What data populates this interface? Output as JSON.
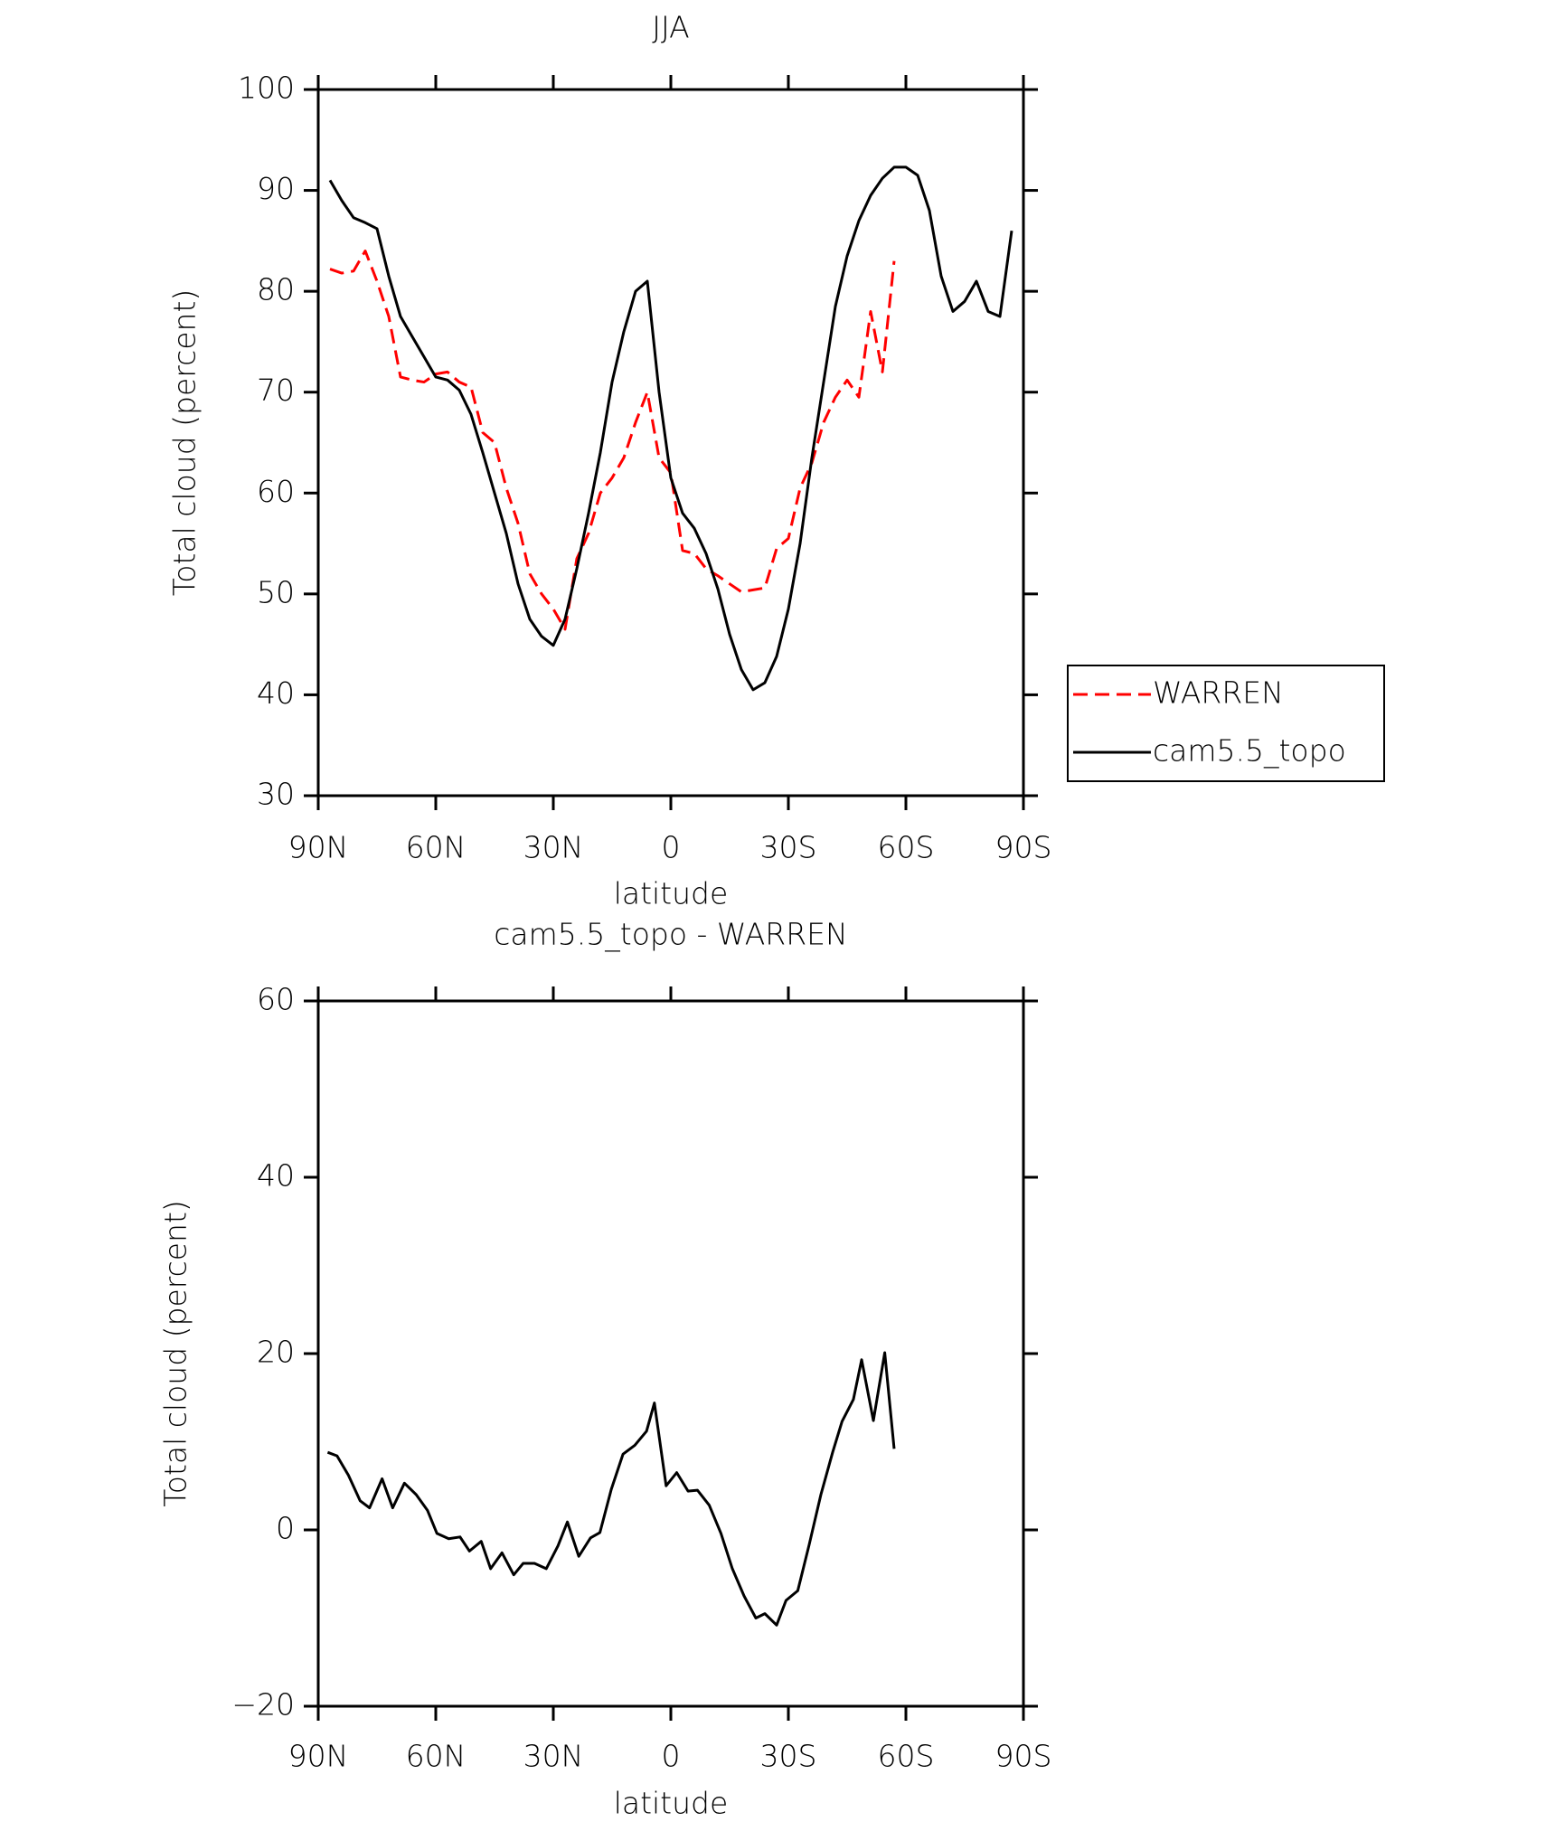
{
  "chart_data": [
    {
      "type": "line",
      "title": "JJA",
      "xlabel": "latitude",
      "ylabel": "Total cloud (percent)",
      "x": [
        87,
        84,
        81,
        78,
        75,
        72,
        69,
        66,
        63,
        60,
        57,
        54,
        51,
        48,
        45,
        42,
        39,
        36,
        33,
        30,
        27,
        24,
        21,
        18,
        15,
        12,
        9,
        6,
        3,
        0,
        -3,
        -6,
        -9,
        -12,
        -15,
        -18,
        -21,
        -24,
        -27,
        -30,
        -33,
        -36,
        -39,
        -42,
        -45,
        -48,
        -51,
        -54,
        -57,
        -60,
        -63,
        -66,
        -69,
        -72,
        -75,
        -78,
        -81,
        -84,
        -87
      ],
      "xlim": [
        90,
        -90
      ],
      "xticks": [
        {
          "value": 90,
          "label": "90N"
        },
        {
          "value": 60,
          "label": "60N"
        },
        {
          "value": 30,
          "label": "30N"
        },
        0,
        {
          "value": -30,
          "label": "30S"
        },
        {
          "value": -60,
          "label": "60S"
        },
        {
          "value": -90,
          "label": "90S"
        }
      ],
      "ylim": [
        30,
        100
      ],
      "yticks": [
        30,
        40,
        50,
        60,
        70,
        80,
        90,
        100
      ],
      "series": [
        {
          "name": "WARREN",
          "color": "#ff0000",
          "dash": true,
          "values": [
            82.2,
            81.8,
            82,
            84,
            81,
            77.5,
            71.5,
            71.2,
            71,
            71.8,
            72,
            71,
            70.5,
            66,
            65,
            60.5,
            57,
            52,
            50,
            48.5,
            46.5,
            53.5,
            56,
            60,
            61.5,
            63.5,
            67,
            70,
            63.5,
            62,
            54.3,
            54,
            52.5,
            51.8,
            51,
            50.2,
            50.4,
            50.6,
            54.5,
            55.5,
            60.5,
            63,
            67,
            69.5,
            71.2,
            69.5,
            78,
            72,
            83,
            null,
            null,
            null,
            null,
            null,
            null,
            null,
            null,
            null,
            null
          ]
        },
        {
          "name": "cam5.5_topo",
          "color": "#000000",
          "dash": false,
          "values": [
            91,
            89,
            87.3,
            86.8,
            86.2,
            81.5,
            77.5,
            75.5,
            73.5,
            71.5,
            71.2,
            70.2,
            67.8,
            64,
            60,
            56,
            51,
            47.5,
            45.8,
            44.9,
            47.5,
            52.5,
            58,
            64,
            71,
            76,
            80,
            81,
            70,
            61.5,
            58,
            56.5,
            54,
            50.5,
            46,
            42.5,
            40.5,
            41.2,
            43.8,
            48.5,
            55,
            63.5,
            71,
            78.5,
            83.5,
            87,
            89.5,
            91.2,
            92.3,
            92.3,
            91.5,
            88,
            81.5,
            78,
            79,
            81,
            78,
            77.5,
            86
          ]
        }
      ],
      "legend": "right"
    },
    {
      "type": "line",
      "title": "cam5.5_topo - WARREN",
      "xlabel": "latitude",
      "ylabel": "Total cloud (percent)",
      "x": [
        87.6,
        85.2,
        82.3,
        79.3,
        76.9,
        73.7,
        71.0,
        68.0,
        65.0,
        62.1,
        59.7,
        56.7,
        53.8,
        51.4,
        48.4,
        46.0,
        43.1,
        40.1,
        37.7,
        34.8,
        31.8,
        28.8,
        26.4,
        23.5,
        20.5,
        18.1,
        15.2,
        12.2,
        9.2,
        6.2,
        4.2,
        1.2,
        -1.5,
        -4.4,
        -6.8,
        -9.8,
        -12.8,
        -15.7,
        -18.7,
        -21.7,
        -24.0,
        -27.0,
        -29.4,
        -32.4,
        -35.3,
        -38.3,
        -41.3,
        -43.7,
        -46.6,
        -48.7,
        -51.7,
        -54.6,
        -57.0
      ],
      "xlim": [
        90,
        -90
      ],
      "xticks": [
        {
          "value": 90,
          "label": "90N"
        },
        {
          "value": 60,
          "label": "60N"
        },
        {
          "value": 30,
          "label": "30N"
        },
        0,
        {
          "value": -30,
          "label": "30S"
        },
        {
          "value": -60,
          "label": "60S"
        },
        {
          "value": -90,
          "label": "90S"
        }
      ],
      "ylim": [
        -20,
        60
      ],
      "yticks": [
        {
          "value": -20,
          "label": "−20"
        },
        0,
        20,
        40,
        60
      ],
      "series": [
        {
          "color": "#000000",
          "values": [
            8.8,
            8.4,
            6.2,
            3.3,
            2.5,
            5.8,
            2.5,
            5.3,
            4,
            2.2,
            -0.4,
            -1,
            -0.8,
            -2.4,
            -1.3,
            -4.4,
            -2.6,
            -5.1,
            -3.8,
            -3.8,
            -4.4,
            -1.8,
            0.9,
            -3,
            -0.9,
            -0.3,
            4.6,
            8.6,
            9.6,
            11.2,
            14.4,
            5,
            6.5,
            4.4,
            4.5,
            2.8,
            -0.4,
            -4.4,
            -7.5,
            -10,
            -9.5,
            -10.8,
            -8,
            -6.9,
            -1.7,
            4,
            8.8,
            12.3,
            14.8,
            19.3,
            12.4,
            20.1,
            9.2
          ]
        }
      ]
    }
  ]
}
